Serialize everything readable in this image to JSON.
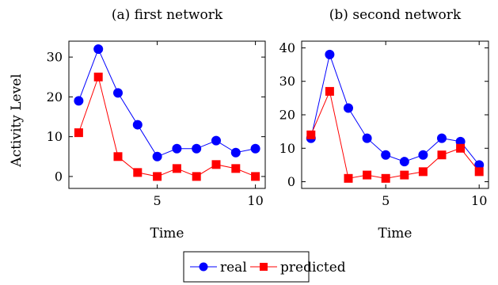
{
  "shared_ylabel": "Activity Level",
  "legend": {
    "items": [
      {
        "label": "real",
        "color": "#0000ff",
        "marker": "circle"
      },
      {
        "label": "predicted",
        "color": "#ff0000",
        "marker": "square"
      }
    ]
  },
  "chart_data": [
    {
      "type": "line",
      "title": "(a) first network",
      "xlabel": "Time",
      "ylabel": "Activity Level",
      "xlim": [
        0.5,
        10.5
      ],
      "ylim": [
        -3,
        34
      ],
      "xticks": [
        5,
        10
      ],
      "yticks": [
        0,
        10,
        20,
        30
      ],
      "grid": false,
      "legend_position": "bottom-center",
      "x": [
        1,
        2,
        3,
        4,
        5,
        6,
        7,
        8,
        9,
        10
      ],
      "series": [
        {
          "name": "real",
          "color": "#0000ff",
          "marker": "circle",
          "values": [
            19,
            32,
            21,
            13,
            5,
            7,
            7,
            9,
            6,
            7
          ]
        },
        {
          "name": "predicted",
          "color": "#ff0000",
          "marker": "square",
          "values": [
            11,
            25,
            5,
            1,
            0,
            2,
            0,
            3,
            2,
            0
          ]
        }
      ]
    },
    {
      "type": "line",
      "title": "(b) second network",
      "xlabel": "Time",
      "ylabel": "",
      "xlim": [
        0.5,
        10.5
      ],
      "ylim": [
        -2,
        42
      ],
      "xticks": [
        5,
        10
      ],
      "yticks": [
        0,
        10,
        20,
        30,
        40
      ],
      "grid": false,
      "legend_position": "bottom-center",
      "x": [
        1,
        2,
        3,
        4,
        5,
        6,
        7,
        8,
        9,
        10
      ],
      "series": [
        {
          "name": "real",
          "color": "#0000ff",
          "marker": "circle",
          "values": [
            13,
            38,
            22,
            13,
            8,
            6,
            8,
            13,
            12,
            5
          ]
        },
        {
          "name": "predicted",
          "color": "#ff0000",
          "marker": "square",
          "values": [
            14,
            27,
            1,
            2,
            1,
            2,
            3,
            8,
            10,
            3
          ]
        }
      ]
    }
  ]
}
